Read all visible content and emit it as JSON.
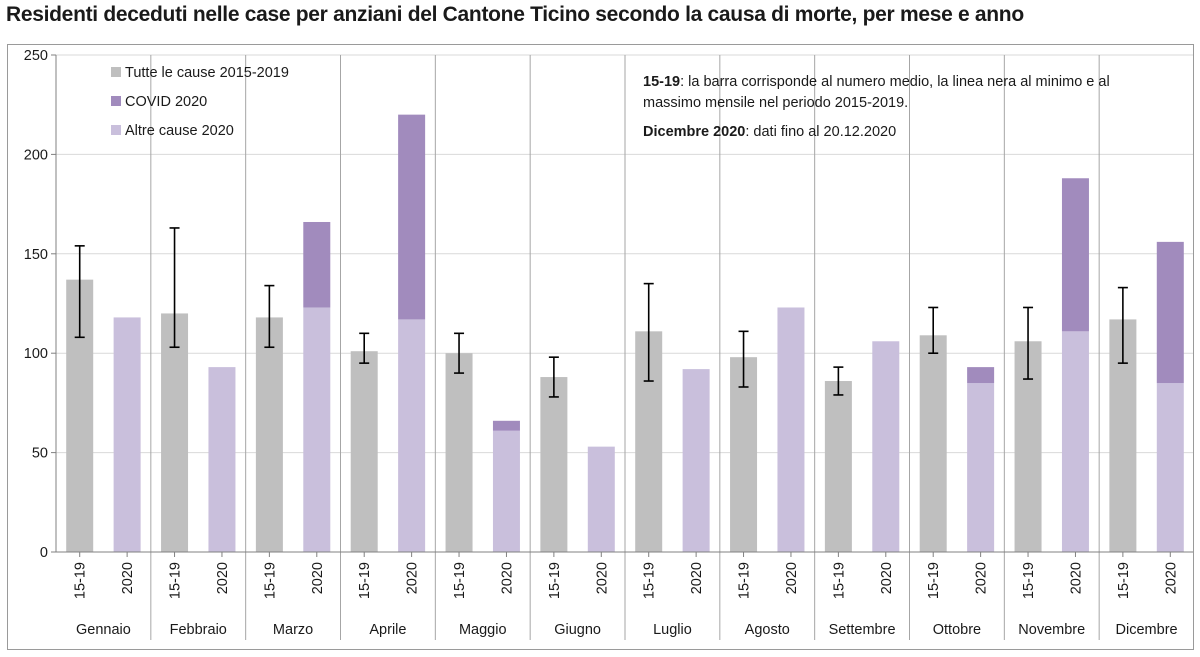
{
  "title": "Residenti deceduti nelle case per anziani del Cantone Ticino secondo la causa di morte, per mese e anno",
  "chart_data": {
    "type": "bar",
    "title": "Residenti deceduti nelle case per anziani del Cantone Ticino secondo la causa di morte, per mese e anno",
    "ylim": [
      0,
      250
    ],
    "yticks": [
      0,
      50,
      100,
      150,
      200,
      250
    ],
    "grid": true,
    "legend_position": "top-left",
    "categories": [
      "Gennaio",
      "Febbraio",
      "Marzo",
      "Aprile",
      "Maggio",
      "Giugno",
      "Luglio",
      "Agosto",
      "Settembre",
      "Ottobre",
      "Novembre",
      "Dicembre"
    ],
    "sub_categories": [
      "15-19",
      "2020"
    ],
    "series": [
      {
        "name": "Tutte le cause 2015-2019",
        "color": "#bfbfbf",
        "values": [
          137,
          120,
          118,
          101,
          100,
          88,
          111,
          98,
          86,
          109,
          106,
          117
        ]
      },
      {
        "name": "COVID 2020",
        "color": "#a18bbd",
        "values": [
          0,
          0,
          43,
          103,
          5,
          0,
          0,
          0,
          0,
          8,
          77,
          71
        ]
      },
      {
        "name": "Altre cause 2020",
        "color": "#c9bfdc",
        "values": [
          118,
          93,
          123,
          117,
          61,
          53,
          92,
          123,
          106,
          85,
          111,
          85
        ]
      }
    ],
    "error_bars_2015_2019": {
      "min": [
        108,
        103,
        103,
        95,
        90,
        78,
        86,
        83,
        79,
        100,
        87,
        95
      ],
      "max": [
        154,
        163,
        134,
        110,
        110,
        98,
        135,
        111,
        93,
        123,
        123,
        133
      ]
    },
    "note": {
      "line1_bold": "15-19",
      "line1_text": ": la barra corrisponde al numero medio, la linea nera al minimo e al",
      "line2_text": "massimo mensile nel periodo 2015-2019.",
      "line3_bold": "Dicembre 2020",
      "line3_text": ": dati fino al 20.12.2020"
    }
  }
}
